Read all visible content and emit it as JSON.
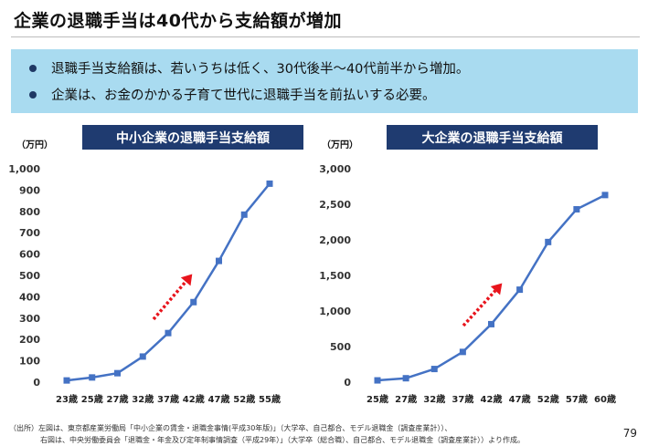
{
  "title": "企業の退職手当は40代から支給額が増加",
  "summary": {
    "items": [
      "退職手当支給額は、若いうちは低く、30代後半～40代前半から増加。",
      "企業は、お金のかかる子育て世代に退職手当を前払いする必要。"
    ]
  },
  "colors": {
    "line": "#4472c4",
    "arrow": "#e8141c",
    "header_bg": "#1f3b70",
    "summary_bg": "#a9dbf0"
  },
  "chart_data": [
    {
      "type": "line",
      "title": "中小企業の退職手当支給額",
      "unit_label": "（万円）",
      "categories": [
        "23歳",
        "25歳",
        "27歳",
        "32歳",
        "37歳",
        "42歳",
        "47歳",
        "52歳",
        "55歳"
      ],
      "values": [
        8,
        22,
        42,
        120,
        230,
        375,
        568,
        785,
        930
      ],
      "ylim": [
        0,
        1000
      ],
      "yticks": [
        0,
        100,
        200,
        300,
        400,
        500,
        600,
        700,
        800,
        900,
        1000
      ],
      "ytick_labels": [
        "0",
        "100",
        "200",
        "300",
        "400",
        "500",
        "600",
        "700",
        "800",
        "900",
        "1,000"
      ],
      "annotation": "red dotted arrow pointing up-right"
    },
    {
      "type": "line",
      "title": "大企業の退職手当支給額",
      "unit_label": "（万円）",
      "categories": [
        "25歳",
        "27歳",
        "32歳",
        "37歳",
        "42歳",
        "47歳",
        "52歳",
        "57歳",
        "60歳"
      ],
      "values": [
        25,
        55,
        185,
        425,
        815,
        1300,
        1970,
        2430,
        2630
      ],
      "ylim": [
        0,
        3000
      ],
      "yticks": [
        0,
        500,
        1000,
        1500,
        2000,
        2500,
        3000
      ],
      "ytick_labels": [
        "0",
        "500",
        "1,000",
        "1,500",
        "2,000",
        "2,500",
        "3,000"
      ],
      "annotation": "red dotted arrow pointing up-right"
    }
  ],
  "source": {
    "line1": "（出所）左図は、東京都産業労働局「中小企業の賃金・退職金事情(平成30年版)」（大学卒、自己都合、モデル退職金（調査産業計））、",
    "line2": "右図は、中央労働委員会「退職金・年金及び定年制事情調査（平成29年）」（大学卒（総合職）、自己都合、モデル退職金（調査産業計））より作成。"
  },
  "page_number": "79"
}
